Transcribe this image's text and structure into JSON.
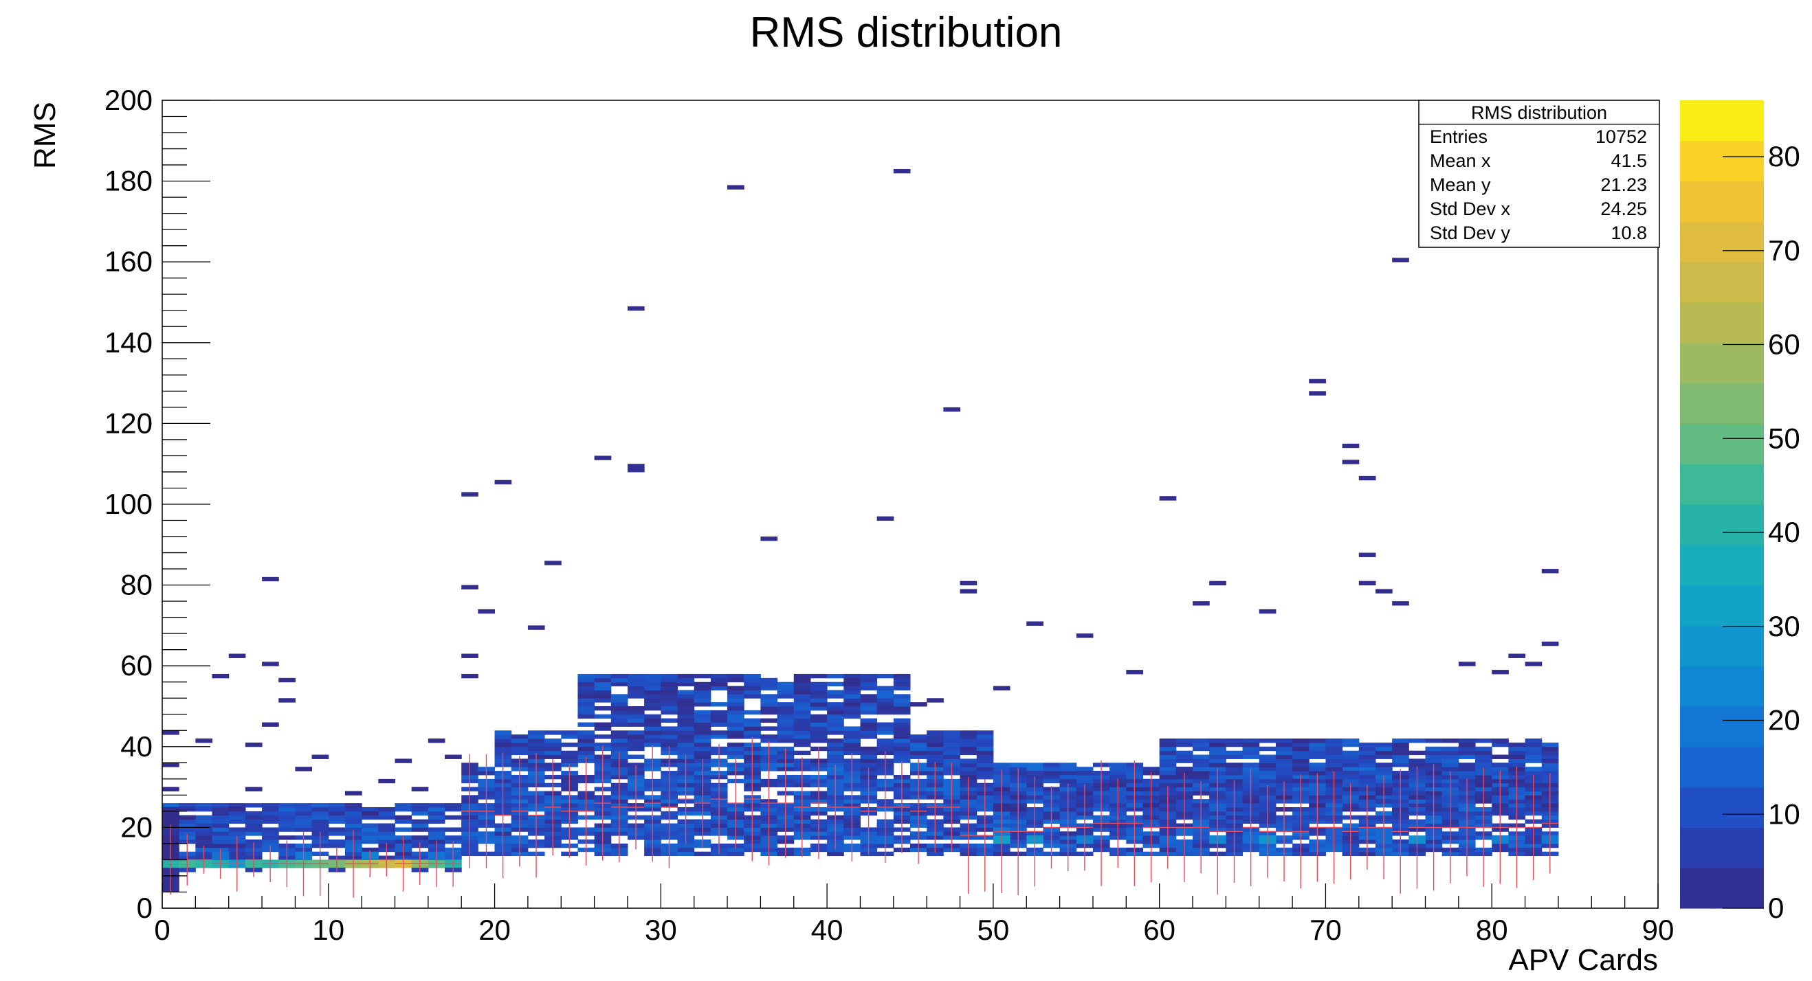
{
  "chart_data": {
    "type": "heatmap",
    "title": "RMS distribution",
    "xlabel": "APV Cards",
    "ylabel": "RMS",
    "xlim": [
      0,
      90
    ],
    "ylim": [
      0,
      200
    ],
    "xticks": [
      0,
      10,
      20,
      30,
      40,
      50,
      60,
      70,
      80,
      90
    ],
    "yticks": [
      0,
      20,
      40,
      60,
      80,
      100,
      120,
      140,
      160,
      180,
      200
    ],
    "colorbar": {
      "min": 0,
      "max": 86,
      "ticks": [
        0,
        10,
        20,
        30,
        40,
        50,
        60,
        70,
        80
      ]
    },
    "stats_box": {
      "title": "RMS distribution",
      "rows": [
        {
          "label": "Entries",
          "value": "10752"
        },
        {
          "label": "Mean x",
          "value": "41.5"
        },
        {
          "label": "Mean y",
          "value": "21.23"
        },
        {
          "label": "Std Dev x",
          "value": "24.25"
        },
        {
          "label": "Std Dev y",
          "value": "10.8"
        }
      ]
    },
    "bin_width_x": 1,
    "bin_height_y": 1,
    "cells": [
      [
        0,
        10,
        12,
        40
      ],
      [
        1,
        10,
        12,
        45
      ],
      [
        2,
        10,
        12,
        42
      ],
      [
        3,
        10,
        12,
        38
      ],
      [
        4,
        10,
        12,
        30
      ],
      [
        5,
        10,
        12,
        44
      ],
      [
        6,
        10,
        12,
        41
      ],
      [
        7,
        10,
        12,
        46
      ],
      [
        8,
        10,
        12,
        48
      ],
      [
        9,
        10,
        12,
        50
      ],
      [
        10,
        10,
        12,
        52
      ],
      [
        11,
        10,
        12,
        58
      ],
      [
        12,
        10,
        12,
        60
      ],
      [
        13,
        10,
        12,
        66
      ],
      [
        14,
        10,
        12,
        70
      ],
      [
        15,
        10,
        12,
        56
      ],
      [
        16,
        10,
        12,
        48
      ],
      [
        17,
        10,
        12,
        40
      ],
      [
        0,
        12,
        14,
        22
      ],
      [
        3,
        12,
        14,
        18
      ],
      [
        8,
        12,
        14,
        20
      ],
      [
        12,
        12,
        14,
        22
      ],
      [
        16,
        12,
        14,
        18
      ],
      [
        0,
        14,
        16,
        15
      ],
      [
        6,
        14,
        16,
        14
      ],
      [
        11,
        14,
        16,
        16
      ],
      [
        14,
        14,
        16,
        14
      ],
      [
        1,
        9,
        10,
        8
      ],
      [
        5,
        9,
        10,
        6
      ],
      [
        10,
        9,
        10,
        6
      ],
      [
        15,
        9,
        10,
        6
      ],
      [
        17,
        9,
        10,
        6
      ],
      [
        20,
        14,
        16,
        12
      ],
      [
        30,
        14,
        16,
        14
      ],
      [
        40,
        14,
        16,
        13
      ],
      [
        50,
        16,
        18,
        32
      ],
      [
        52,
        16,
        18,
        28
      ],
      [
        55,
        16,
        18,
        22
      ],
      [
        63,
        16,
        18,
        24
      ],
      [
        66,
        16,
        18,
        28
      ],
      [
        75,
        16,
        18,
        26
      ],
      [
        80,
        16,
        18,
        22
      ],
      [
        83,
        16,
        18,
        20
      ],
      [
        0,
        17,
        19,
        18
      ],
      [
        0,
        19,
        21,
        10
      ],
      [
        2,
        19,
        21,
        8
      ],
      [
        5,
        19,
        21,
        6
      ],
      [
        9,
        19,
        21,
        6
      ],
      [
        13,
        19,
        21,
        6
      ],
      [
        18,
        20,
        22,
        10
      ],
      [
        22,
        20,
        22,
        12
      ],
      [
        27,
        20,
        22,
        11
      ],
      [
        32,
        20,
        22,
        10
      ],
      [
        37,
        20,
        22,
        12
      ],
      [
        43,
        20,
        22,
        11
      ],
      [
        46,
        20,
        22,
        9
      ],
      [
        50,
        18,
        20,
        20
      ],
      [
        58,
        18,
        20,
        14
      ],
      [
        61,
        18,
        20,
        16
      ],
      [
        70,
        18,
        20,
        14
      ],
      [
        73,
        18,
        20,
        16
      ],
      [
        78,
        18,
        20,
        12
      ],
      [
        0,
        4,
        10,
        2
      ],
      [
        0,
        12,
        18,
        1
      ],
      [
        0,
        18,
        20,
        3
      ],
      [
        0,
        20,
        24,
        1
      ],
      [
        0,
        24,
        25,
        1
      ],
      [
        0,
        29,
        30,
        1
      ],
      [
        0,
        35,
        36,
        1
      ],
      [
        0,
        43,
        44,
        1
      ],
      [
        1,
        22,
        23,
        1
      ],
      [
        2,
        41,
        42,
        1
      ],
      [
        3,
        57,
        58,
        1
      ],
      [
        4,
        62,
        63,
        1
      ],
      [
        5,
        40,
        41,
        1
      ],
      [
        6,
        81,
        82,
        1
      ],
      [
        6,
        60,
        61,
        1
      ],
      [
        7,
        56,
        57,
        1
      ],
      [
        7,
        51,
        52,
        1
      ],
      [
        6,
        45,
        46,
        1
      ],
      [
        4,
        24,
        25,
        1
      ],
      [
        5,
        29,
        30,
        1
      ],
      [
        8,
        34,
        35,
        1
      ],
      [
        9,
        37,
        38,
        1
      ],
      [
        11,
        28,
        29,
        1
      ],
      [
        12,
        23,
        24,
        1
      ],
      [
        13,
        31,
        32,
        1
      ],
      [
        14,
        36,
        37,
        1
      ],
      [
        15,
        29,
        30,
        1
      ],
      [
        16,
        41,
        42,
        1
      ],
      [
        17,
        37,
        38,
        1
      ],
      [
        18,
        79,
        80,
        1
      ],
      [
        18,
        62,
        63,
        1
      ],
      [
        18,
        57,
        58,
        1
      ],
      [
        19,
        73,
        74,
        1
      ],
      [
        20,
        105,
        106,
        1
      ],
      [
        18,
        102,
        103,
        1
      ],
      [
        22,
        69,
        70,
        1
      ],
      [
        23,
        85,
        86,
        1
      ],
      [
        26,
        111,
        112,
        1
      ],
      [
        28,
        108,
        110,
        2
      ],
      [
        28,
        148,
        149,
        1
      ],
      [
        34,
        178,
        179,
        1
      ],
      [
        36,
        91,
        92,
        1
      ],
      [
        43,
        96,
        97,
        1
      ],
      [
        44,
        182,
        183,
        1
      ],
      [
        47,
        123,
        124,
        1
      ],
      [
        60,
        101,
        102,
        1
      ],
      [
        69,
        130,
        131,
        1
      ],
      [
        69,
        127,
        128,
        1
      ],
      [
        71,
        114,
        115,
        1
      ],
      [
        71,
        110,
        111,
        1
      ],
      [
        72,
        106,
        107,
        1
      ],
      [
        72,
        87,
        88,
        1
      ],
      [
        74,
        160,
        161,
        1
      ],
      [
        83,
        83,
        84,
        1
      ],
      [
        48,
        80,
        81,
        1
      ],
      [
        48,
        78,
        79,
        1
      ],
      [
        46,
        51,
        52,
        1
      ],
      [
        45,
        50,
        51,
        1
      ],
      [
        50,
        54,
        55,
        1
      ],
      [
        52,
        70,
        71,
        1
      ],
      [
        55,
        67,
        68,
        1
      ],
      [
        58,
        58,
        59,
        1
      ],
      [
        62,
        75,
        76,
        1
      ],
      [
        63,
        80,
        81,
        1
      ],
      [
        66,
        73,
        74,
        1
      ],
      [
        72,
        80,
        81,
        1
      ],
      [
        73,
        78,
        79,
        1
      ],
      [
        74,
        75,
        76,
        1
      ],
      [
        78,
        60,
        61,
        1
      ],
      [
        80,
        58,
        59,
        1
      ],
      [
        82,
        60,
        61,
        1
      ],
      [
        81,
        62,
        63,
        1
      ],
      [
        83,
        65,
        66,
        1
      ]
    ],
    "dense_blocks": [
      [
        0,
        18,
        12,
        26,
        2
      ],
      [
        18,
        84,
        13,
        36,
        3
      ],
      [
        20,
        50,
        36,
        44,
        1
      ],
      [
        25,
        45,
        44,
        58,
        1
      ],
      [
        48,
        84,
        24,
        34,
        1
      ],
      [
        60,
        84,
        34,
        42,
        1
      ]
    ],
    "error_bar_columns": [
      0,
      2,
      3,
      5,
      6,
      8,
      9,
      11,
      12,
      14,
      15,
      17,
      18,
      20,
      21,
      23,
      24,
      26,
      27,
      29,
      30,
      32,
      33,
      35,
      36,
      38,
      39,
      41,
      42,
      44,
      45,
      47,
      48,
      50,
      51,
      53,
      54,
      56,
      57,
      59,
      60,
      62,
      63,
      65,
      66,
      68,
      69,
      71,
      72,
      74,
      75,
      77,
      78,
      80,
      81,
      83
    ],
    "profile_means": [
      12,
      12,
      12,
      11,
      11,
      12,
      11,
      11,
      11,
      11,
      12,
      11,
      11,
      12,
      11,
      11,
      11,
      11,
      24,
      24,
      23,
      24,
      23,
      25,
      24,
      24,
      26,
      25,
      25,
      26,
      25,
      27,
      26,
      27,
      26,
      27,
      26,
      26,
      25,
      26,
      25,
      25,
      24,
      25,
      25,
      24,
      25,
      25,
      18,
      18,
      19,
      19,
      19,
      20,
      20,
      20,
      21,
      21,
      21,
      20,
      20,
      20,
      20,
      19,
      19,
      20,
      19,
      19,
      19,
      20,
      20,
      19,
      20,
      20,
      19,
      20,
      20,
      20,
      20,
      20,
      20,
      20,
      20,
      21
    ]
  }
}
